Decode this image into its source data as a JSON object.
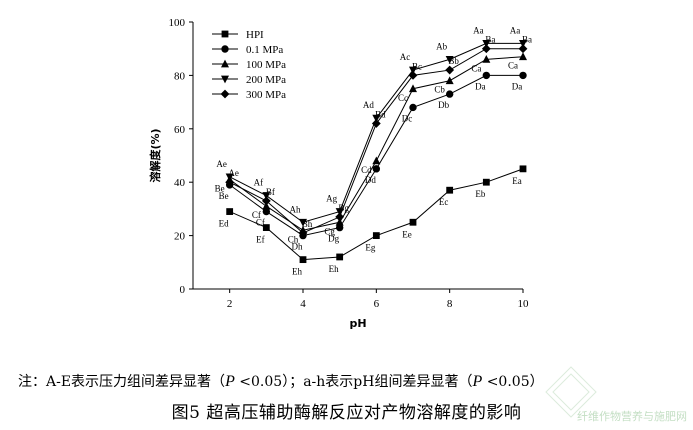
{
  "chart_data": {
    "type": "line",
    "title": "",
    "xlabel": "pH",
    "ylabel": "溶解度(%)",
    "xlim": [
      1,
      10
    ],
    "ylim": [
      0,
      100
    ],
    "xticks": [
      2,
      4,
      6,
      8,
      10
    ],
    "yticks": [
      0,
      20,
      40,
      60,
      80,
      100
    ],
    "grid": false,
    "legend_placement": "top-left",
    "x": [
      2,
      3,
      4,
      5,
      6,
      7,
      8,
      9,
      10
    ],
    "series": [
      {
        "name": "HPI",
        "marker": "square",
        "values": [
          29,
          23,
          11,
          12,
          20,
          25,
          37,
          40,
          45
        ],
        "labels": [
          "Ed",
          "Ef",
          "Eh",
          "Eh",
          "Eg",
          "Ee",
          "Ec",
          "Eb",
          "Ea"
        ]
      },
      {
        "name": "0.1 MPa",
        "marker": "circle",
        "values": [
          39,
          29,
          20,
          23,
          45,
          68,
          73,
          80,
          80
        ],
        "labels": [
          "Be",
          "Cf",
          "Dh",
          "Dg",
          "Dd",
          "Dc",
          "Db",
          "Da",
          "Da"
        ]
      },
      {
        "name": "100 MPa",
        "marker": "triangle-up",
        "values": [
          41,
          31,
          22,
          25,
          48,
          75,
          78,
          86,
          87
        ],
        "labels": [
          "Be",
          "Cf",
          "Ch",
          "Cg",
          "Cd",
          "Cc",
          "Cb",
          "Ca",
          "Ca"
        ]
      },
      {
        "name": "200 MPa",
        "marker": "triangle-down",
        "values": [
          42,
          35,
          25,
          29,
          64,
          82,
          86,
          92,
          92
        ],
        "labels": [
          "Ae",
          "Af",
          "Ah",
          "Ag",
          "Ad",
          "Ac",
          "Ab",
          "Aa",
          "Aa"
        ]
      },
      {
        "name": "300 MPa",
        "marker": "diamond",
        "values": [
          40,
          33,
          21,
          27,
          62,
          80,
          82,
          90,
          90
        ],
        "labels": [
          "Ae",
          "Bf",
          "Bh",
          "Bg",
          "Bd",
          "Bc",
          "Bb",
          "Ba",
          "Ba"
        ]
      }
    ]
  },
  "note": {
    "prefix": "注：A-E表示压力组间差异显著（",
    "p1": "P",
    "mid": " <0.05）；a-h表示pH组间差异显著（",
    "p2": "P",
    "suffix": " <0.05）"
  },
  "caption": "图5  超高压辅助酶解反应对产物溶解度的影响",
  "watermark": "纤维作物营养与施肥网"
}
